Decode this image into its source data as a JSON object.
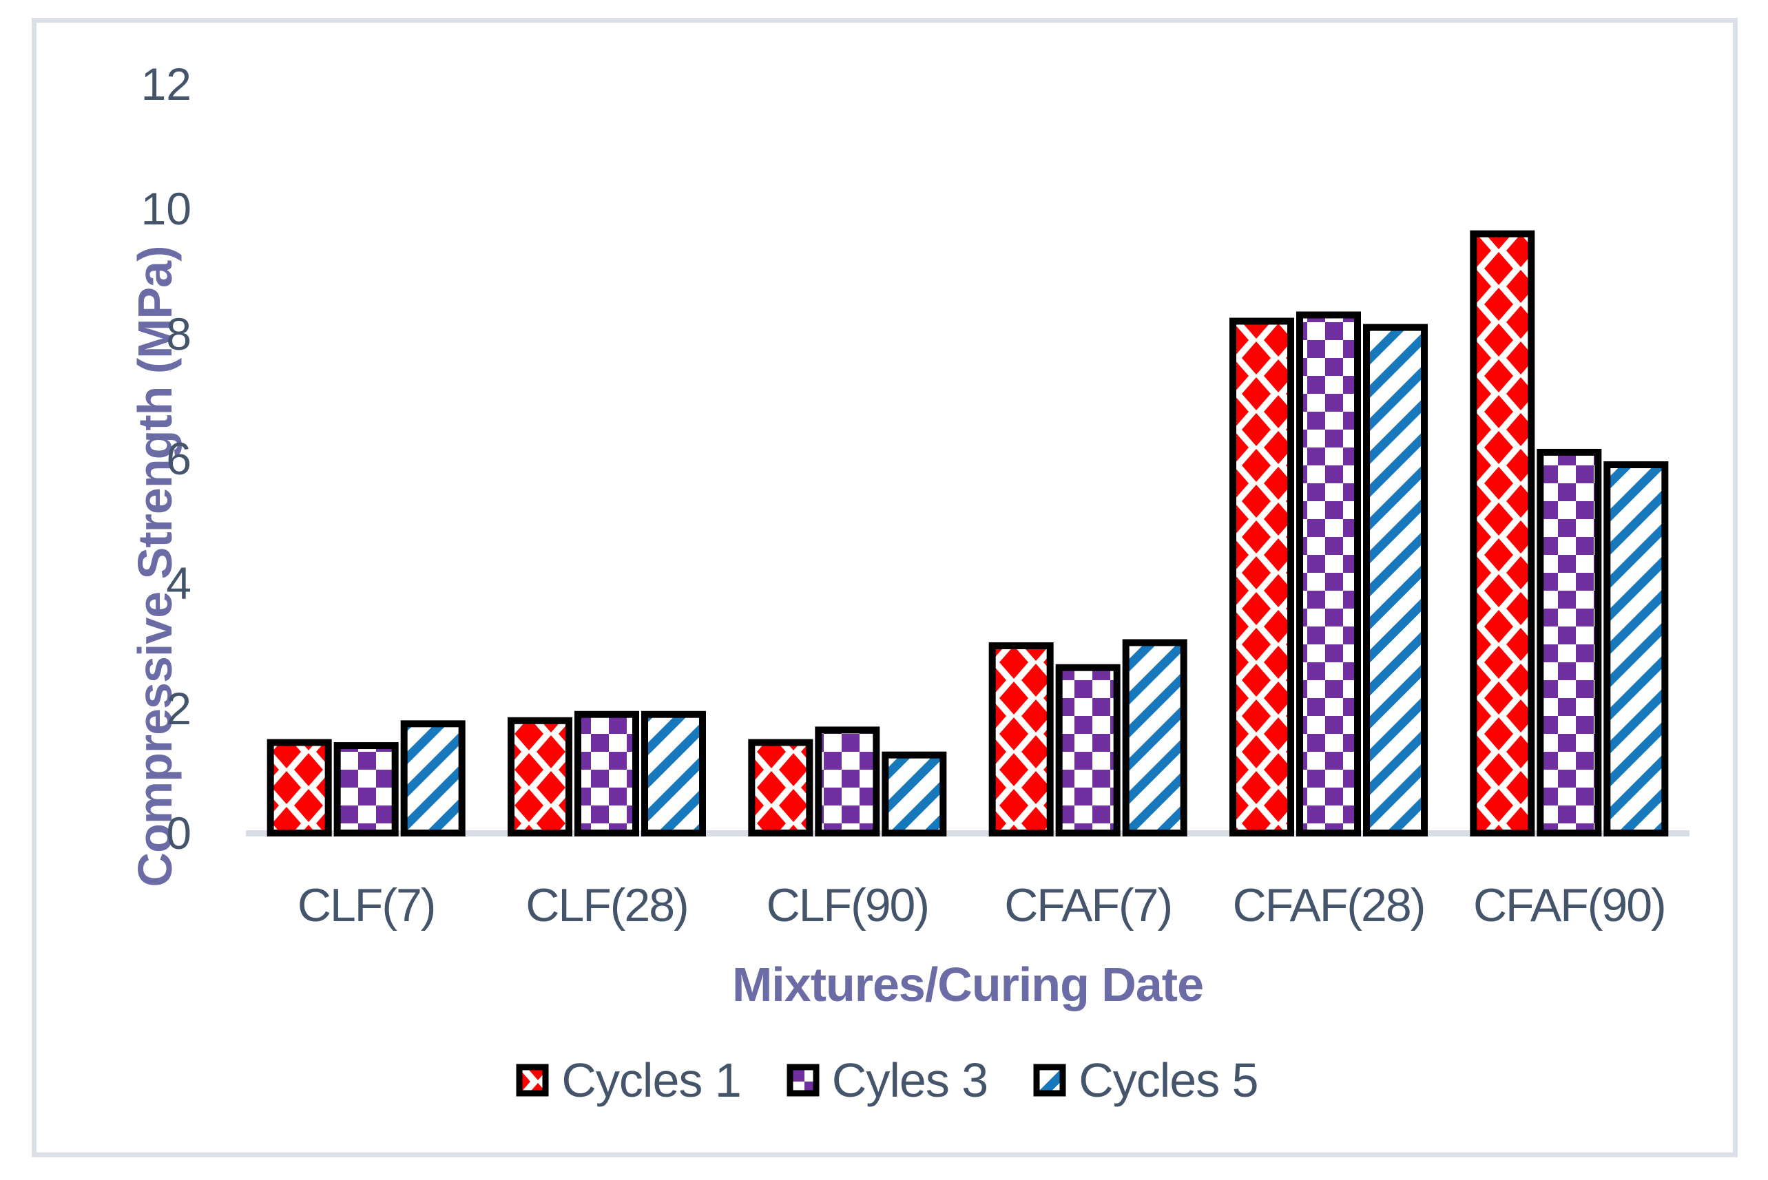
{
  "colors": {
    "axis_text": "#44546A",
    "axis_title": "#6B6BA5",
    "axis_line": "#D9DDE6",
    "frame_border": "#DBDFE8",
    "bar_border": "#000000",
    "series_red": "#FF0000",
    "series_purple": "#7030A0",
    "series_blue": "#1878BC"
  },
  "chart_data": {
    "type": "bar",
    "title": "",
    "xlabel": "Mixtures/Curing Date",
    "ylabel": "Compressive Strength (MPa)",
    "categories": [
      "CLF(7)",
      "CLF(28)",
      "CLF(90)",
      "CFAF(7)",
      "CFAF(28)",
      "CFAF(90)"
    ],
    "series": [
      {
        "name": "Cycles 1",
        "pattern": "diamond",
        "color": "#FF0000",
        "values": [
          1.45,
          1.8,
          1.45,
          3.0,
          8.2,
          9.6
        ]
      },
      {
        "name": "Cyles 3",
        "pattern": "checker",
        "color": "#7030A0",
        "values": [
          1.4,
          1.9,
          1.65,
          2.65,
          8.3,
          6.1
        ]
      },
      {
        "name": "Cycles 5",
        "pattern": "stripes",
        "color": "#1878BC",
        "values": [
          1.75,
          1.9,
          1.25,
          3.05,
          8.1,
          5.9
        ]
      }
    ],
    "ylim": [
      0,
      12
    ],
    "yticks": [
      0,
      2,
      4,
      6,
      8,
      10,
      12
    ],
    "grid": false,
    "legend_position": "bottom"
  }
}
